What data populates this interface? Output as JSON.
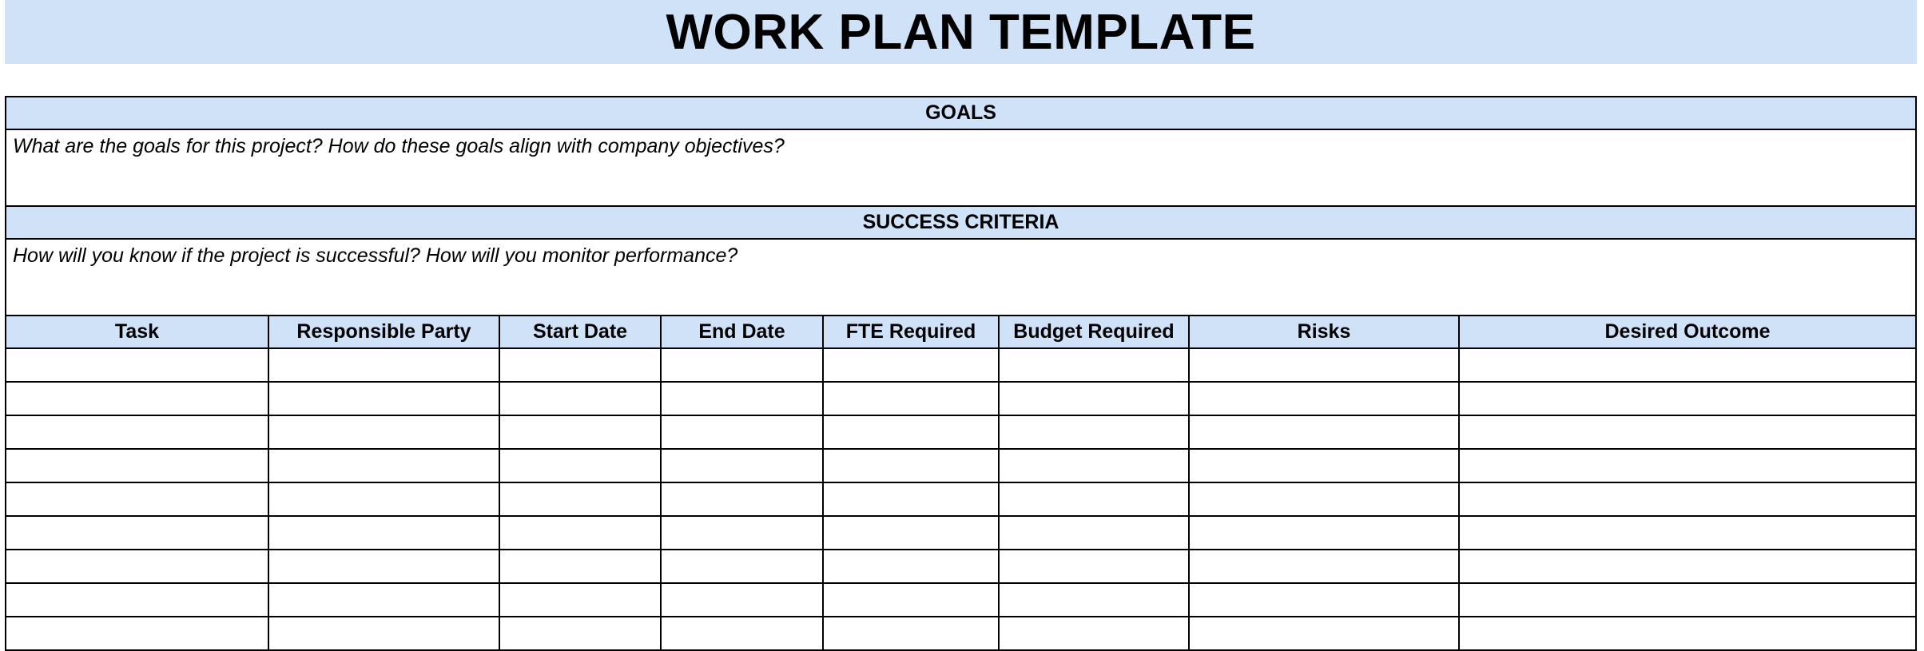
{
  "title": "WORK PLAN TEMPLATE",
  "goals": {
    "heading": "GOALS",
    "prompt": "What are the goals for this project? How do these goals align with company objectives?"
  },
  "success_criteria": {
    "heading": "SUCCESS CRITERIA",
    "prompt": "How will you know if the project is successful? How will you monitor performance?"
  },
  "table": {
    "columns": [
      "Task",
      "Responsible Party",
      "Start Date",
      "End Date",
      "FTE Required",
      "Budget Required",
      "Risks",
      "Desired Outcome"
    ],
    "rows": [
      [
        "",
        "",
        "",
        "",
        "",
        "",
        "",
        ""
      ],
      [
        "",
        "",
        "",
        "",
        "",
        "",
        "",
        ""
      ],
      [
        "",
        "",
        "",
        "",
        "",
        "",
        "",
        ""
      ],
      [
        "",
        "",
        "",
        "",
        "",
        "",
        "",
        ""
      ],
      [
        "",
        "",
        "",
        "",
        "",
        "",
        "",
        ""
      ],
      [
        "",
        "",
        "",
        "",
        "",
        "",
        "",
        ""
      ],
      [
        "",
        "",
        "",
        "",
        "",
        "",
        "",
        ""
      ],
      [
        "",
        "",
        "",
        "",
        "",
        "",
        "",
        ""
      ],
      [
        "",
        "",
        "",
        "",
        "",
        "",
        "",
        ""
      ]
    ]
  },
  "colors": {
    "header_fill": "#cfe2f8",
    "border": "#000000"
  }
}
